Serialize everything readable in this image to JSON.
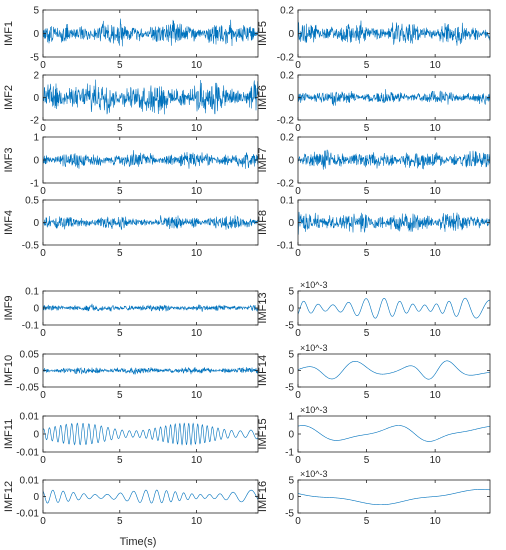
{
  "figure": {
    "xlabel": "Time(s)"
  },
  "chart_data": [
    {
      "type": "line",
      "ylabel": "IMF1",
      "xlim": [
        0,
        14
      ],
      "ylim": [
        -5,
        5
      ],
      "xticks": [
        0,
        5,
        10
      ],
      "yticks": [
        "5",
        "0",
        "-5"
      ],
      "exponent": "",
      "amplitude": 2.5,
      "waveform": "noise",
      "freq": 60
    },
    {
      "type": "line",
      "ylabel": "IMF5",
      "xlim": [
        0,
        14
      ],
      "ylim": [
        -0.2,
        0.2
      ],
      "xticks": [
        0,
        5,
        10
      ],
      "yticks": [
        "0.2",
        "0",
        "-0.2"
      ],
      "exponent": "",
      "amplitude": 0.09,
      "waveform": "noise",
      "freq": 60
    },
    {
      "type": "line",
      "ylabel": "IMF2",
      "xlim": [
        0,
        14
      ],
      "ylim": [
        -2,
        2
      ],
      "xticks": [
        0,
        5,
        10
      ],
      "yticks": [
        "2",
        "0",
        "-2"
      ],
      "exponent": "",
      "amplitude": 1.4,
      "waveform": "noise",
      "freq": 55
    },
    {
      "type": "line",
      "ylabel": "IMF6",
      "xlim": [
        0,
        14
      ],
      "ylim": [
        -0.2,
        0.2
      ],
      "xticks": [
        0,
        5,
        10
      ],
      "yticks": [
        "0.2",
        "0",
        "-0.2"
      ],
      "exponent": "",
      "amplitude": 0.06,
      "waveform": "noise",
      "freq": 50
    },
    {
      "type": "line",
      "ylabel": "IMF3",
      "xlim": [
        0,
        14
      ],
      "ylim": [
        -1,
        1
      ],
      "xticks": [
        0,
        5,
        10
      ],
      "yticks": [
        "1",
        "0",
        "-1"
      ],
      "exponent": "",
      "amplitude": 0.35,
      "waveform": "noise",
      "freq": 50
    },
    {
      "type": "line",
      "ylabel": "IMF7",
      "xlim": [
        0,
        14
      ],
      "ylim": [
        -0.2,
        0.2
      ],
      "xticks": [
        0,
        5,
        10
      ],
      "yticks": [
        "0.2",
        "0",
        "-0.2"
      ],
      "exponent": "",
      "amplitude": 0.08,
      "waveform": "noise",
      "freq": 45
    },
    {
      "type": "line",
      "ylabel": "IMF4",
      "xlim": [
        0,
        14
      ],
      "ylim": [
        -0.5,
        0.5
      ],
      "xticks": [
        0,
        5,
        10
      ],
      "yticks": [
        "0.5",
        "0",
        "-0.5"
      ],
      "exponent": "",
      "amplitude": 0.15,
      "waveform": "noise",
      "freq": 45
    },
    {
      "type": "line",
      "ylabel": "IMF8",
      "xlim": [
        0,
        14
      ],
      "ylim": [
        -0.1,
        0.1
      ],
      "xticks": [
        0,
        5,
        10
      ],
      "yticks": [
        "0.1",
        "0",
        "-0.1"
      ],
      "exponent": "",
      "amplitude": 0.045,
      "waveform": "noise",
      "freq": 40
    },
    {
      "type": "line",
      "ylabel": "IMF9",
      "xlim": [
        0,
        14
      ],
      "ylim": [
        -0.1,
        0.1
      ],
      "xticks": [
        0,
        5,
        10
      ],
      "yticks": [
        "0.1",
        "0",
        "-0.1"
      ],
      "exponent": "",
      "amplitude": 0.02,
      "waveform": "noise",
      "freq": 35
    },
    {
      "type": "line",
      "ylabel": "IMF13",
      "xlim": [
        0,
        14
      ],
      "ylim": [
        -5,
        5
      ],
      "xticks": [
        0,
        5,
        10
      ],
      "yticks": [
        "5",
        "0",
        "-5"
      ],
      "exponent": "×10^-3",
      "amplitude": 3,
      "waveform": "osc",
      "freq": 0.9
    },
    {
      "type": "line",
      "ylabel": "IMF10",
      "xlim": [
        0,
        14
      ],
      "ylim": [
        -0.05,
        0.05
      ],
      "xticks": [
        0,
        5,
        10
      ],
      "yticks": [
        "0.05",
        "0",
        "-0.05"
      ],
      "exponent": "",
      "amplitude": 0.01,
      "waveform": "noise",
      "freq": 18
    },
    {
      "type": "line",
      "ylabel": "IMF14",
      "xlim": [
        0,
        14
      ],
      "ylim": [
        -5,
        5
      ],
      "xticks": [
        0,
        5,
        10
      ],
      "yticks": [
        "5",
        "0",
        "-5"
      ],
      "exponent": "×10^-3",
      "amplitude": 3,
      "waveform": "osc",
      "freq": 0.28
    },
    {
      "type": "line",
      "ylabel": "IMF11",
      "xlim": [
        0,
        14
      ],
      "ylim": [
        -0.01,
        0.01
      ],
      "xticks": [
        0,
        5,
        10
      ],
      "yticks": [
        "0.01",
        "0",
        "-0.01"
      ],
      "exponent": "",
      "amplitude": 0.006,
      "waveform": "osc",
      "freq": 2.6
    },
    {
      "type": "line",
      "ylabel": "IMF15",
      "xlim": [
        0,
        14
      ],
      "ylim": [
        -1,
        1
      ],
      "xticks": [
        0,
        5,
        10
      ],
      "yticks": [
        "1",
        "0",
        "-1"
      ],
      "exponent": "×10^-3",
      "amplitude": 0.55,
      "waveform": "osc",
      "freq": 0.15
    },
    {
      "type": "line",
      "ylabel": "IMF12",
      "xlim": [
        0,
        14
      ],
      "ylim": [
        -0.01,
        0.01
      ],
      "xticks": [
        0,
        5,
        10
      ],
      "yticks": [
        "0.01",
        "0",
        "-0.01"
      ],
      "exponent": "",
      "amplitude": 0.004,
      "waveform": "osc",
      "freq": 1.4
    },
    {
      "type": "line",
      "ylabel": "IMF16",
      "xlim": [
        0,
        14
      ],
      "ylim": [
        -5,
        5
      ],
      "xticks": [
        0,
        5,
        10
      ],
      "yticks": [
        "5",
        "0",
        "-5"
      ],
      "exponent": "×10^-3",
      "amplitude": 2.5,
      "waveform": "osc",
      "freq": 0.055
    }
  ],
  "colors": {
    "line": "#0072BD",
    "axes": "#262626",
    "background": "#ffffff"
  }
}
